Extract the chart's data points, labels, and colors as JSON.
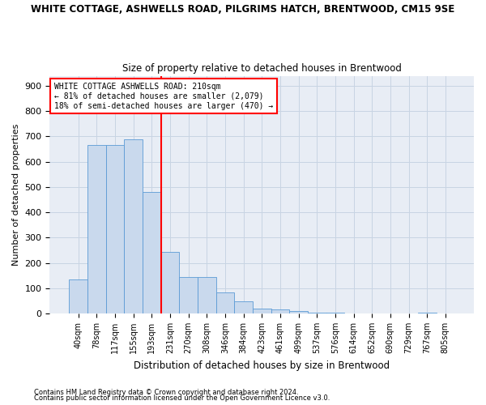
{
  "title1": "WHITE COTTAGE, ASHWELLS ROAD, PILGRIMS HATCH, BRENTWOOD, CM15 9SE",
  "title2": "Size of property relative to detached houses in Brentwood",
  "xlabel": "Distribution of detached houses by size in Brentwood",
  "ylabel": "Number of detached properties",
  "bar_labels": [
    "40sqm",
    "78sqm",
    "117sqm",
    "155sqm",
    "193sqm",
    "231sqm",
    "270sqm",
    "308sqm",
    "346sqm",
    "384sqm",
    "423sqm",
    "461sqm",
    "499sqm",
    "537sqm",
    "576sqm",
    "614sqm",
    "652sqm",
    "690sqm",
    "729sqm",
    "767sqm",
    "805sqm"
  ],
  "bar_values": [
    135,
    665,
    665,
    690,
    480,
    245,
    145,
    145,
    83,
    47,
    20,
    15,
    10,
    5,
    5,
    0,
    0,
    0,
    0,
    5,
    0
  ],
  "bar_color": "#c9d9ed",
  "bar_edge_color": "#5b9bd5",
  "grid_color": "#c8d4e3",
  "background_color": "#e8edf5",
  "red_line_x": 5.0,
  "annotation_lines": [
    "WHITE COTTAGE ASHWELLS ROAD: 210sqm",
    "← 81% of detached houses are smaller (2,079)",
    "18% of semi-detached houses are larger (470) →"
  ],
  "footnote1": "Contains HM Land Registry data © Crown copyright and database right 2024.",
  "footnote2": "Contains public sector information licensed under the Open Government Licence v3.0.",
  "ylim": [
    0,
    940
  ],
  "yticks": [
    0,
    100,
    200,
    300,
    400,
    500,
    600,
    700,
    800,
    900
  ]
}
